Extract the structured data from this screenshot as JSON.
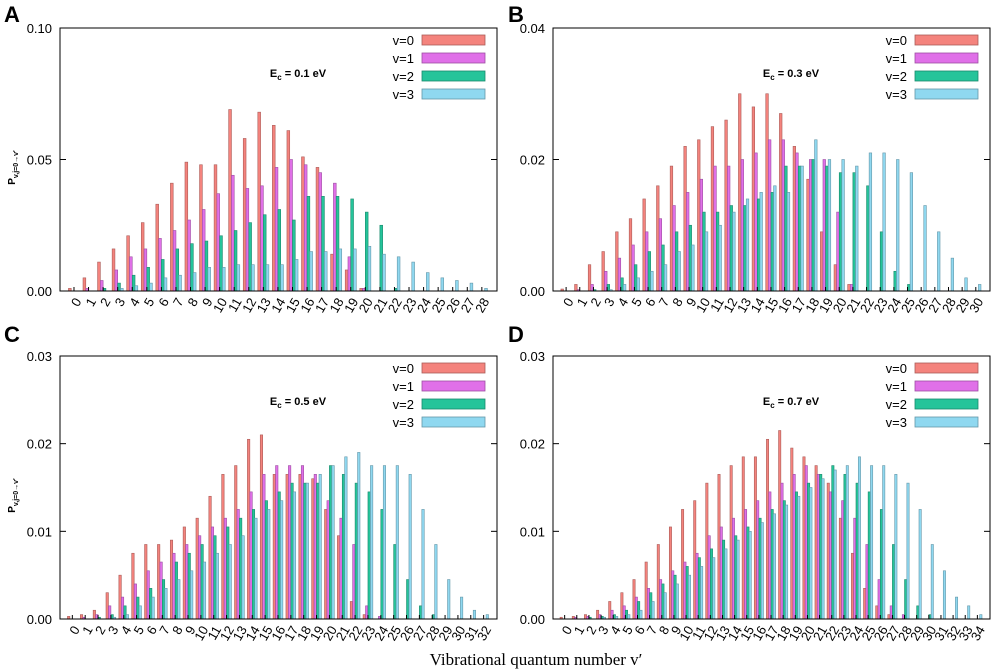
{
  "xlabel": "Vibrational quantum number v′",
  "chart_data": [
    {
      "panel": "A",
      "type": "bar",
      "title": "E_c = 0.1 eV",
      "title_main": "E",
      "title_sub": "c",
      "title_rest": " = 0.1 eV",
      "ylabel_main": "P",
      "ylabel_sub": "v,j=0→v′",
      "ylim": [
        0,
        0.1
      ],
      "yticks": [
        "0.00",
        "0.05",
        "0.10"
      ],
      "ytick_values": [
        0,
        0.05,
        0.1
      ],
      "x": [
        0,
        1,
        2,
        3,
        4,
        5,
        6,
        7,
        8,
        9,
        10,
        11,
        12,
        13,
        14,
        15,
        16,
        17,
        18,
        19,
        20,
        21,
        22,
        23,
        24,
        25,
        26,
        27,
        28
      ],
      "xlabel": "",
      "series": [
        {
          "name": "v=0",
          "color": "#f4837d",
          "values": [
            0.001,
            0.005,
            0.011,
            0.016,
            0.021,
            0.026,
            0.033,
            0.041,
            0.049,
            0.048,
            0.048,
            0.069,
            0.058,
            0.068,
            0.063,
            0.061,
            0.051,
            0.047,
            0.014,
            0.008,
            0.001,
            0,
            0,
            0,
            0,
            0,
            0,
            0,
            0
          ]
        },
        {
          "name": "v=1",
          "color": "#e070e8",
          "values": [
            0,
            0.001,
            0.004,
            0.008,
            0.013,
            0.016,
            0.02,
            0.023,
            0.027,
            0.031,
            0.037,
            0.044,
            0.039,
            0.04,
            0.047,
            0.05,
            0.048,
            0.045,
            0.041,
            0.013,
            0.001,
            0,
            0,
            0,
            0,
            0,
            0,
            0,
            0
          ]
        },
        {
          "name": "v=2",
          "color": "#25c49a",
          "values": [
            0,
            0,
            0.001,
            0.003,
            0.006,
            0.009,
            0.012,
            0.016,
            0.018,
            0.019,
            0.021,
            0.023,
            0.026,
            0.029,
            0.031,
            0.027,
            0.036,
            0.036,
            0.036,
            0.035,
            0.03,
            0.025,
            0.001,
            0,
            0,
            0,
            0,
            0,
            0
          ]
        },
        {
          "name": "v=3",
          "color": "#8fd8f0",
          "values": [
            0,
            0,
            0,
            0.001,
            0.002,
            0.003,
            0.005,
            0.006,
            0.007,
            0.009,
            0.009,
            0.01,
            0.01,
            0.01,
            0.01,
            0.012,
            0.015,
            0.015,
            0.016,
            0.016,
            0.017,
            0.014,
            0.013,
            0.011,
            0.007,
            0.005,
            0.004,
            0.003,
            0.001
          ]
        }
      ]
    },
    {
      "panel": "B",
      "type": "bar",
      "title": "E_c = 0.3 eV",
      "title_main": "E",
      "title_sub": "c",
      "title_rest": " = 0.3 eV",
      "ylabel_main": "",
      "ylabel_sub": "",
      "ylim": [
        0,
        0.04
      ],
      "yticks": [
        "0.00",
        "0.02",
        "0.04"
      ],
      "ytick_values": [
        0,
        0.02,
        0.04
      ],
      "x": [
        0,
        1,
        2,
        3,
        4,
        5,
        6,
        7,
        8,
        9,
        10,
        11,
        12,
        13,
        14,
        15,
        16,
        17,
        18,
        19,
        20,
        21,
        22,
        23,
        24,
        25,
        26,
        27,
        28,
        29,
        30
      ],
      "xlabel": "",
      "series": [
        {
          "name": "v=0",
          "color": "#f4837d",
          "values": [
            0.0003,
            0.001,
            0.004,
            0.006,
            0.009,
            0.011,
            0.014,
            0.016,
            0.019,
            0.022,
            0.023,
            0.025,
            0.026,
            0.03,
            0.028,
            0.03,
            0.027,
            0.022,
            0.017,
            0.009,
            0.004,
            0.001,
            0,
            0,
            0,
            0,
            0,
            0,
            0,
            0,
            0
          ]
        },
        {
          "name": "v=1",
          "color": "#e070e8",
          "values": [
            0,
            0.0002,
            0.001,
            0.003,
            0.005,
            0.007,
            0.009,
            0.011,
            0.013,
            0.015,
            0.017,
            0.019,
            0.019,
            0.02,
            0.021,
            0.023,
            0.023,
            0.021,
            0.02,
            0.02,
            0.012,
            0.001,
            0,
            0,
            0,
            0,
            0,
            0,
            0,
            0,
            0
          ]
        },
        {
          "name": "v=2",
          "color": "#25c49a",
          "values": [
            0,
            0,
            0.0002,
            0.001,
            0.002,
            0.004,
            0.006,
            0.007,
            0.009,
            0.01,
            0.012,
            0.012,
            0.013,
            0.013,
            0.014,
            0.015,
            0.019,
            0.019,
            0.02,
            0.019,
            0.018,
            0.018,
            0.016,
            0.009,
            0.003,
            0.001,
            0,
            0,
            0,
            0,
            0
          ]
        },
        {
          "name": "v=3",
          "color": "#8fd8f0",
          "values": [
            0,
            0,
            0,
            0.0002,
            0.001,
            0.002,
            0.003,
            0.004,
            0.006,
            0.007,
            0.009,
            0.01,
            0.012,
            0.014,
            0.015,
            0.016,
            0.015,
            0.019,
            0.023,
            0.02,
            0.02,
            0.019,
            0.021,
            0.021,
            0.02,
            0.018,
            0.013,
            0.009,
            0.005,
            0.002,
            0.001
          ]
        }
      ]
    },
    {
      "panel": "C",
      "type": "bar",
      "title": "E_c = 0.5 eV",
      "title_main": "E",
      "title_sub": "c",
      "title_rest": " = 0.5 eV",
      "ylabel_main": "P",
      "ylabel_sub": "v,j=0→v′",
      "ylim": [
        0,
        0.03
      ],
      "yticks": [
        "0.00",
        "0.01",
        "0.02",
        "0.03"
      ],
      "ytick_values": [
        0,
        0.01,
        0.02,
        0.03
      ],
      "x": [
        0,
        1,
        2,
        3,
        4,
        5,
        6,
        7,
        8,
        9,
        10,
        11,
        12,
        13,
        14,
        15,
        16,
        17,
        18,
        19,
        20,
        21,
        22,
        23,
        24,
        25,
        26,
        27,
        28,
        29,
        30,
        31,
        32
      ],
      "xlabel": "",
      "series": [
        {
          "name": "v=0",
          "color": "#f4837d",
          "values": [
            0.0003,
            0.0005,
            0.001,
            0.003,
            0.005,
            0.0075,
            0.0085,
            0.0085,
            0.009,
            0.0105,
            0.0115,
            0.014,
            0.0165,
            0.0175,
            0.0205,
            0.021,
            0.0165,
            0.0165,
            0.0165,
            0.016,
            0.0125,
            0.0095,
            0.002,
            0.0005,
            0,
            0,
            0,
            0,
            0,
            0,
            0,
            0,
            0
          ]
        },
        {
          "name": "v=1",
          "color": "#e070e8",
          "values": [
            0,
            0.0002,
            0.0005,
            0.0015,
            0.0025,
            0.004,
            0.0055,
            0.0065,
            0.0075,
            0.0085,
            0.0095,
            0.0105,
            0.0115,
            0.0125,
            0.0145,
            0.0165,
            0.0175,
            0.0175,
            0.0175,
            0.0165,
            0.0135,
            0.0115,
            0.0085,
            0.0015,
            0.0003,
            0,
            0,
            0,
            0,
            0,
            0,
            0,
            0
          ]
        },
        {
          "name": "v=2",
          "color": "#25c49a",
          "values": [
            0,
            0,
            0.0002,
            0.0005,
            0.0015,
            0.0025,
            0.0035,
            0.0045,
            0.0065,
            0.0075,
            0.0085,
            0.0095,
            0.0105,
            0.0115,
            0.0125,
            0.0135,
            0.0145,
            0.0155,
            0.0155,
            0.0155,
            0.0175,
            0.0165,
            0.0155,
            0.0145,
            0.0125,
            0.0085,
            0.0045,
            0.0015,
            0.0005,
            0,
            0,
            0,
            0
          ]
        },
        {
          "name": "v=3",
          "color": "#8fd8f0",
          "values": [
            0,
            0,
            0,
            0.0002,
            0.0005,
            0.0015,
            0.0025,
            0.0035,
            0.0045,
            0.0055,
            0.0065,
            0.0075,
            0.0085,
            0.0095,
            0.0115,
            0.0125,
            0.0135,
            0.0145,
            0.0155,
            0.0165,
            0.0175,
            0.0185,
            0.019,
            0.0175,
            0.0175,
            0.0175,
            0.0165,
            0.0125,
            0.0085,
            0.0045,
            0.0025,
            0.001,
            0.0005
          ]
        }
      ]
    },
    {
      "panel": "D",
      "type": "bar",
      "title": "E_c = 0.7 eV",
      "title_main": "E",
      "title_sub": "c",
      "title_rest": " = 0.7 eV",
      "ylabel_main": "",
      "ylabel_sub": "",
      "ylim": [
        0,
        0.03
      ],
      "yticks": [
        "0.00",
        "0.01",
        "0.02",
        "0.03"
      ],
      "ytick_values": [
        0,
        0.01,
        0.02,
        0.03
      ],
      "x": [
        0,
        1,
        2,
        3,
        4,
        5,
        6,
        7,
        8,
        9,
        10,
        11,
        12,
        13,
        14,
        15,
        16,
        17,
        18,
        19,
        20,
        21,
        22,
        23,
        24,
        25,
        26,
        27,
        28,
        29,
        30,
        31,
        32,
        33,
        34
      ],
      "xlabel": "",
      "series": [
        {
          "name": "v=0",
          "color": "#f4837d",
          "values": [
            0.0002,
            0.0003,
            0.0005,
            0.001,
            0.002,
            0.003,
            0.0045,
            0.0065,
            0.0085,
            0.0105,
            0.0125,
            0.0135,
            0.0155,
            0.0165,
            0.0175,
            0.0185,
            0.0185,
            0.0205,
            0.0215,
            0.0195,
            0.0185,
            0.0175,
            0.0155,
            0.0115,
            0.0075,
            0.0035,
            0.0015,
            0.0005,
            0,
            0,
            0,
            0,
            0,
            0,
            0
          ]
        },
        {
          "name": "v=1",
          "color": "#e070e8",
          "values": [
            0,
            0.0002,
            0.0003,
            0.0005,
            0.001,
            0.0015,
            0.0025,
            0.0035,
            0.0045,
            0.0055,
            0.0065,
            0.0075,
            0.0095,
            0.0105,
            0.0115,
            0.0125,
            0.0135,
            0.0145,
            0.0155,
            0.0165,
            0.0175,
            0.0165,
            0.0145,
            0.0135,
            0.0115,
            0.0085,
            0.0045,
            0.0015,
            0.0005,
            0,
            0,
            0,
            0,
            0,
            0
          ]
        },
        {
          "name": "v=2",
          "color": "#25c49a",
          "values": [
            0,
            0,
            0.0002,
            0.0003,
            0.0005,
            0.001,
            0.002,
            0.003,
            0.004,
            0.005,
            0.006,
            0.007,
            0.008,
            0.009,
            0.0095,
            0.0105,
            0.0115,
            0.0125,
            0.0135,
            0.0145,
            0.0155,
            0.0165,
            0.0175,
            0.0165,
            0.0155,
            0.0145,
            0.0125,
            0.0085,
            0.0045,
            0.0015,
            0.0005,
            0,
            0,
            0,
            0
          ]
        },
        {
          "name": "v=3",
          "color": "#8fd8f0",
          "values": [
            0,
            0,
            0,
            0.0002,
            0.0003,
            0.0005,
            0.001,
            0.002,
            0.003,
            0.004,
            0.005,
            0.006,
            0.007,
            0.008,
            0.009,
            0.01,
            0.011,
            0.012,
            0.013,
            0.014,
            0.015,
            0.016,
            0.017,
            0.0175,
            0.0185,
            0.0175,
            0.0175,
            0.0165,
            0.0155,
            0.0125,
            0.0085,
            0.0055,
            0.0025,
            0.0015,
            0.0005
          ]
        }
      ]
    }
  ]
}
